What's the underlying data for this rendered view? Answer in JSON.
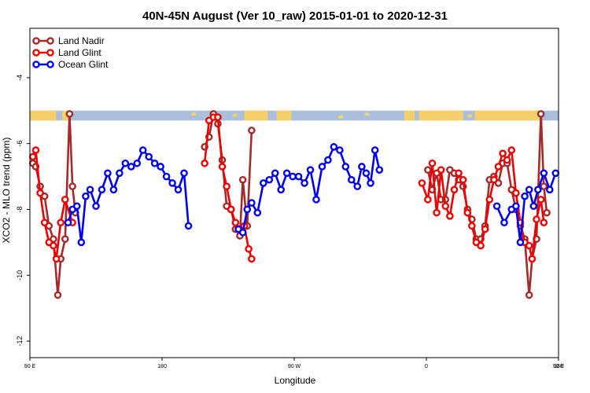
{
  "chart_data": {
    "type": "line",
    "title": "40N-45N August (Ver 10_raw)   2015-01-01 to 2020-12-31",
    "xlabel": "Longitude",
    "ylabel": "XCO2 - MLO trend (ppm)",
    "xlim": [
      90,
      450
    ],
    "ylim": [
      -12.5,
      -2.5
    ],
    "yticks": [
      -12,
      -10,
      -8,
      -6,
      -4
    ],
    "ytick_labels": [
      "-12",
      "-10",
      "-8",
      "-6",
      "-4"
    ],
    "xticks": [
      90,
      180,
      270,
      360,
      450
    ],
    "xtick_labels": [
      "90 E",
      "180",
      "90 W",
      "0",
      "90 E",
      "180"
    ],
    "xtick_positions": [
      90,
      180,
      270,
      360,
      450,
      540
    ],
    "legend_position": "top-left",
    "map_strip": {
      "y_top": -5.0,
      "y_bottom": -5.3,
      "land_color": "#f5d06a",
      "ocean_color": "#a9bfdc"
    },
    "series": [
      {
        "name": "Land Nadir",
        "color": "#a52a2a",
        "points": [
          [
            92,
            -6.6
          ],
          [
            94,
            -6.7
          ],
          [
            97,
            -7.3
          ],
          [
            100,
            -7.6
          ],
          [
            103,
            -8.5
          ],
          [
            106,
            -8.9
          ],
          [
            109,
            -10.6
          ],
          [
            111,
            -9.5
          ],
          [
            114,
            -8.9
          ],
          [
            117,
            -5.1
          ],
          [
            119,
            -7.3
          ],
          [
            121,
            -8.1
          ],
          [
            209,
            -6.1
          ],
          [
            212,
            -5.8
          ],
          [
            215,
            -5.1
          ],
          [
            218,
            -5.4
          ],
          [
            221,
            -6.5
          ],
          [
            224,
            -7.9
          ],
          [
            227,
            -8.0
          ],
          [
            230,
            -8.6
          ],
          [
            233,
            -8.8
          ],
          [
            235,
            -7.1
          ],
          [
            238,
            -8.5
          ],
          [
            241,
            -5.6
          ],
          [
            361,
            -6.8
          ],
          [
            364,
            -7.4
          ],
          [
            367,
            -6.9
          ],
          [
            370,
            -7.7
          ],
          [
            373,
            -7.7
          ],
          [
            376,
            -6.8
          ],
          [
            379,
            -6.9
          ],
          [
            382,
            -7.1
          ],
          [
            385,
            -7.3
          ],
          [
            388,
            -8.0
          ],
          [
            391,
            -8.3
          ],
          [
            394,
            -8.9
          ],
          [
            397,
            -8.9
          ],
          [
            400,
            -8.5
          ],
          [
            403,
            -7.1
          ],
          [
            406,
            -7.0
          ],
          [
            409,
            -7.2
          ],
          [
            412,
            -6.6
          ],
          [
            415,
            -6.6
          ],
          [
            418,
            -7.4
          ],
          [
            421,
            -8.0
          ],
          [
            424,
            -8.5
          ],
          [
            427,
            -8.9
          ],
          [
            430,
            -10.6
          ],
          [
            432,
            -9.5
          ],
          [
            435,
            -8.9
          ],
          [
            438,
            -5.1
          ],
          [
            440,
            -7.3
          ],
          [
            442,
            -8.1
          ]
        ]
      },
      {
        "name": "Land Glint",
        "color": "#ee0000",
        "points": [
          [
            92,
            -6.4
          ],
          [
            94,
            -6.2
          ],
          [
            97,
            -7.5
          ],
          [
            100,
            -8.4
          ],
          [
            103,
            -9.0
          ],
          [
            106,
            -9.1
          ],
          [
            108,
            -9.5
          ],
          [
            111,
            -8.4
          ],
          [
            114,
            -7.7
          ],
          [
            119,
            -8.4
          ],
          [
            209,
            -6.6
          ],
          [
            212,
            -5.3
          ],
          [
            215,
            -5.2
          ],
          [
            218,
            -5.2
          ],
          [
            221,
            -6.7
          ],
          [
            224,
            -7.3
          ],
          [
            227,
            -8.0
          ],
          [
            230,
            -8.4
          ],
          [
            233,
            -8.6
          ],
          [
            236,
            -8.5
          ],
          [
            239,
            -9.2
          ],
          [
            241,
            -9.5
          ],
          [
            357,
            -7.2
          ],
          [
            361,
            -7.7
          ],
          [
            364,
            -6.6
          ],
          [
            367,
            -8.1
          ],
          [
            370,
            -6.8
          ],
          [
            373,
            -7.9
          ],
          [
            376,
            -8.2
          ],
          [
            379,
            -7.4
          ],
          [
            382,
            -6.9
          ],
          [
            385,
            -7.1
          ],
          [
            388,
            -8.1
          ],
          [
            391,
            -8.5
          ],
          [
            394,
            -9.0
          ],
          [
            397,
            -9.1
          ],
          [
            400,
            -8.6
          ],
          [
            403,
            -7.7
          ],
          [
            406,
            -7.1
          ],
          [
            409,
            -6.7
          ],
          [
            412,
            -6.3
          ],
          [
            415,
            -6.5
          ],
          [
            418,
            -6.2
          ],
          [
            421,
            -7.5
          ],
          [
            424,
            -8.4
          ],
          [
            427,
            -9.0
          ],
          [
            430,
            -9.1
          ],
          [
            432,
            -9.5
          ],
          [
            435,
            -8.3
          ],
          [
            438,
            -7.7
          ],
          [
            440,
            -8.4
          ]
        ]
      },
      {
        "name": "Ocean Glint",
        "color": "#0000ee",
        "points": [
          [
            116,
            -8.4
          ],
          [
            119,
            -8.0
          ],
          [
            122,
            -7.9
          ],
          [
            125,
            -9.0
          ],
          [
            128,
            -7.6
          ],
          [
            131,
            -7.4
          ],
          [
            135,
            -7.9
          ],
          [
            139,
            -7.4
          ],
          [
            143,
            -6.9
          ],
          [
            147,
            -7.4
          ],
          [
            151,
            -6.9
          ],
          [
            155,
            -6.6
          ],
          [
            159,
            -6.7
          ],
          [
            163,
            -6.6
          ],
          [
            167,
            -6.2
          ],
          [
            171,
            -6.4
          ],
          [
            175,
            -6.6
          ],
          [
            179,
            -6.7
          ],
          [
            183,
            -7.0
          ],
          [
            187,
            -7.2
          ],
          [
            191,
            -7.4
          ],
          [
            195,
            -6.9
          ],
          [
            198,
            -8.5
          ],
          [
            232,
            -8.6
          ],
          [
            235,
            -8.7
          ],
          [
            238,
            -8.0
          ],
          [
            241,
            -7.8
          ],
          [
            245,
            -8.1
          ],
          [
            249,
            -7.2
          ],
          [
            253,
            -7.1
          ],
          [
            257,
            -6.9
          ],
          [
            261,
            -7.4
          ],
          [
            265,
            -6.9
          ],
          [
            269,
            -7.0
          ],
          [
            273,
            -7.0
          ],
          [
            277,
            -7.2
          ],
          [
            281,
            -6.8
          ],
          [
            285,
            -7.7
          ],
          [
            289,
            -6.7
          ],
          [
            293,
            -6.5
          ],
          [
            297,
            -6.1
          ],
          [
            301,
            -6.2
          ],
          [
            305,
            -6.7
          ],
          [
            309,
            -7.1
          ],
          [
            313,
            -7.3
          ],
          [
            316,
            -6.7
          ],
          [
            319,
            -6.9
          ],
          [
            322,
            -7.2
          ],
          [
            325,
            -6.2
          ],
          [
            328,
            -6.8
          ],
          [
            408,
            -7.9
          ],
          [
            413,
            -8.4
          ],
          [
            418,
            -8.0
          ],
          [
            421,
            -7.9
          ],
          [
            424,
            -9.0
          ],
          [
            427,
            -7.6
          ],
          [
            430,
            -7.4
          ],
          [
            433,
            -7.9
          ],
          [
            436,
            -7.4
          ],
          [
            440,
            -6.9
          ],
          [
            444,
            -7.4
          ],
          [
            448,
            -6.9
          ]
        ]
      }
    ]
  }
}
